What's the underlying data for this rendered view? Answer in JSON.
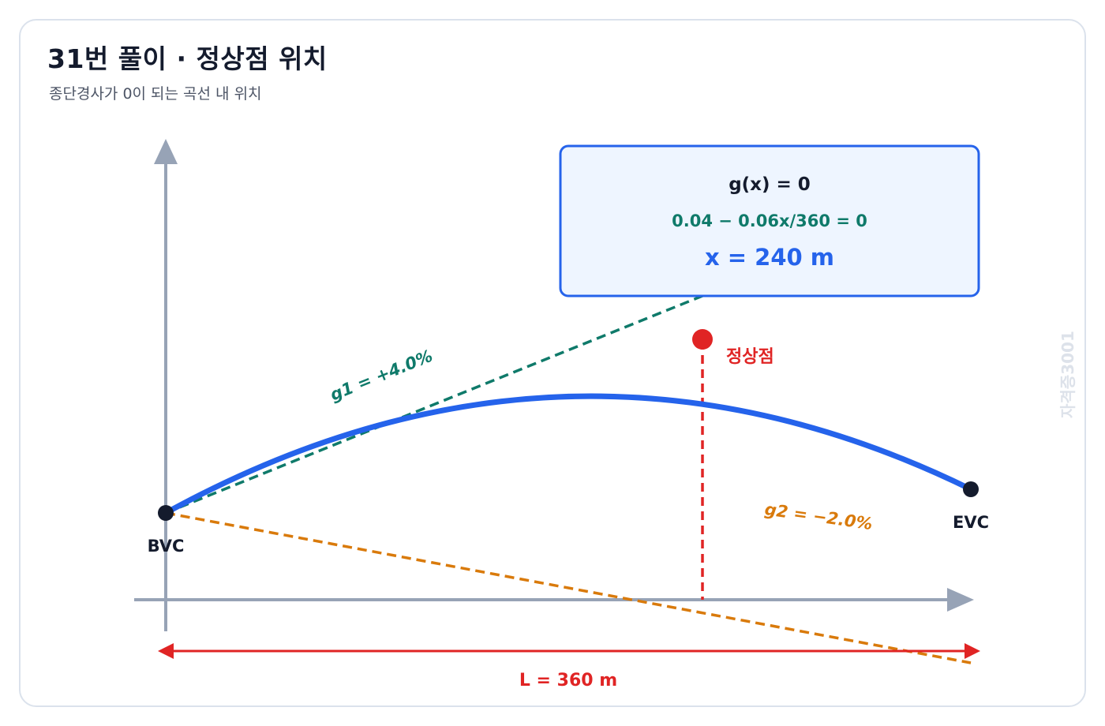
{
  "header": {
    "title": "31번 풀이 · 정상점 위치",
    "subtitle": "종단경사가 0이 되는 곡선 내 위치"
  },
  "equation_box": {
    "line1": "g(x) = 0",
    "line2": "0.04 − 0.06x/360 = 0",
    "line3": "x = 240 m"
  },
  "labels": {
    "summit": "정상점",
    "bvc": "BVC",
    "evc": "EVC",
    "g1": "g1 = +4.0%",
    "g2": "g2 = −2.0%",
    "length": "L = 360 m",
    "watermark": "자격증3001"
  },
  "colors": {
    "curve": "#2563eb",
    "g1": "#0f7a6a",
    "g2": "#d97a0b",
    "summit": "#e02424",
    "axis": "#97a3b6",
    "box_border": "#2563eb",
    "box_fill": "#eef5ff"
  },
  "values": {
    "curve_length_m": 360,
    "g1_percent": 4.0,
    "g2_percent": -2.0,
    "summit_x_m": 240
  }
}
